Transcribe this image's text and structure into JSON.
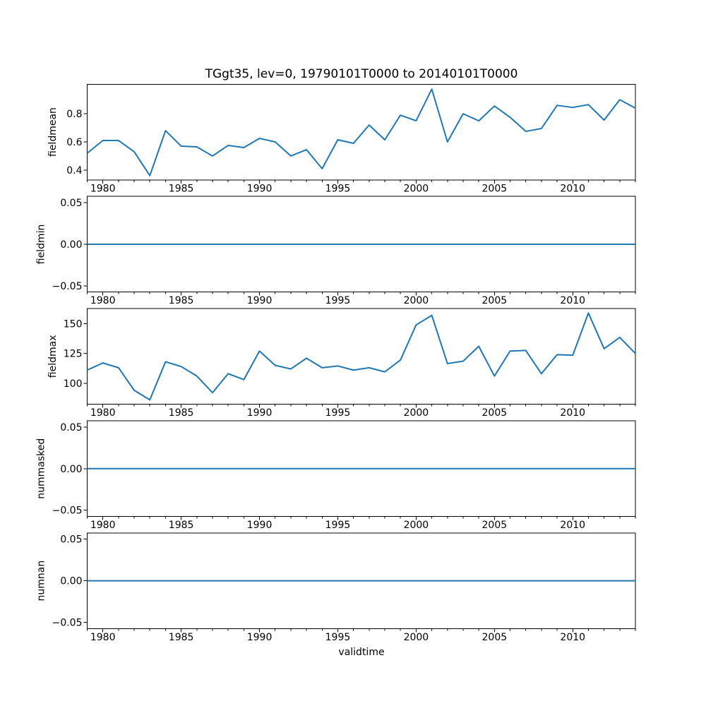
{
  "chart_data": {
    "type": "line",
    "title": "TGgt35, lev=0, 19790101T0000 to 20140101T0000",
    "xlabel": "validtime",
    "line_color": "#1f77b4",
    "xlim": [
      1979,
      2014
    ],
    "x": [
      1979,
      1980,
      1981,
      1982,
      1983,
      1984,
      1985,
      1986,
      1987,
      1988,
      1989,
      1990,
      1991,
      1992,
      1993,
      1994,
      1995,
      1996,
      1997,
      1998,
      1999,
      2000,
      2001,
      2002,
      2003,
      2004,
      2005,
      2006,
      2007,
      2008,
      2009,
      2010,
      2011,
      2012,
      2013,
      2014
    ],
    "xticks_major": [
      1980,
      1985,
      1990,
      1995,
      2000,
      2005,
      2010
    ],
    "xtick_labels": [
      "1980",
      "1985",
      "1990",
      "1995",
      "2000",
      "2005",
      "2010"
    ],
    "xticks_minor_every": 1,
    "legend": "none",
    "grid": false,
    "subplots": [
      {
        "ylabel": "fieldmean",
        "ylim": [
          0.33,
          1.01
        ],
        "yticks": [
          0.8,
          0.6,
          0.4
        ],
        "ytick_labels": [
          "0.8",
          "0.6",
          "0.4"
        ],
        "values": [
          0.52,
          0.61,
          0.61,
          0.53,
          0.36,
          0.68,
          0.57,
          0.565,
          0.5,
          0.575,
          0.56,
          0.625,
          0.6,
          0.5,
          0.545,
          0.41,
          0.615,
          0.59,
          0.72,
          0.615,
          0.79,
          0.75,
          0.975,
          0.6,
          0.8,
          0.75,
          0.855,
          0.775,
          0.675,
          0.695,
          0.86,
          0.845,
          0.865,
          0.755,
          0.9,
          0.84
        ]
      },
      {
        "ylabel": "fieldmin",
        "ylim": [
          -0.0575,
          0.0575
        ],
        "yticks": [
          0.05,
          0.0,
          -0.05
        ],
        "ytick_labels": [
          "0.05",
          "0.00",
          "−0.05"
        ],
        "values": [
          0,
          0,
          0,
          0,
          0,
          0,
          0,
          0,
          0,
          0,
          0,
          0,
          0,
          0,
          0,
          0,
          0,
          0,
          0,
          0,
          0,
          0,
          0,
          0,
          0,
          0,
          0,
          0,
          0,
          0,
          0,
          0,
          0,
          0,
          0,
          0
        ]
      },
      {
        "ylabel": "fieldmax",
        "ylim": [
          82.3,
          162.7
        ],
        "yticks": [
          150,
          125,
          100
        ],
        "ytick_labels": [
          "150",
          "125",
          "100"
        ],
        "values": [
          111,
          117,
          113,
          94,
          86,
          118,
          114,
          106,
          92,
          108,
          103,
          127,
          115,
          112,
          121,
          113,
          114.5,
          111,
          113,
          109.5,
          119.5,
          149,
          157,
          116.5,
          118.5,
          131,
          106,
          127,
          127.5,
          108,
          124,
          123.5,
          159,
          129,
          138.5,
          125
        ]
      },
      {
        "ylabel": "nummasked",
        "ylim": [
          -0.0575,
          0.0575
        ],
        "yticks": [
          0.05,
          0.0,
          -0.05
        ],
        "ytick_labels": [
          "0.05",
          "0.00",
          "−0.05"
        ],
        "values": [
          0,
          0,
          0,
          0,
          0,
          0,
          0,
          0,
          0,
          0,
          0,
          0,
          0,
          0,
          0,
          0,
          0,
          0,
          0,
          0,
          0,
          0,
          0,
          0,
          0,
          0,
          0,
          0,
          0,
          0,
          0,
          0,
          0,
          0,
          0,
          0
        ]
      },
      {
        "ylabel": "numnan",
        "ylim": [
          -0.0575,
          0.0575
        ],
        "yticks": [
          0.05,
          0.0,
          -0.05
        ],
        "ytick_labels": [
          "0.05",
          "0.00",
          "−0.05"
        ],
        "values": [
          0,
          0,
          0,
          0,
          0,
          0,
          0,
          0,
          0,
          0,
          0,
          0,
          0,
          0,
          0,
          0,
          0,
          0,
          0,
          0,
          0,
          0,
          0,
          0,
          0,
          0,
          0,
          0,
          0,
          0,
          0,
          0,
          0,
          0,
          0,
          0
        ]
      }
    ]
  }
}
